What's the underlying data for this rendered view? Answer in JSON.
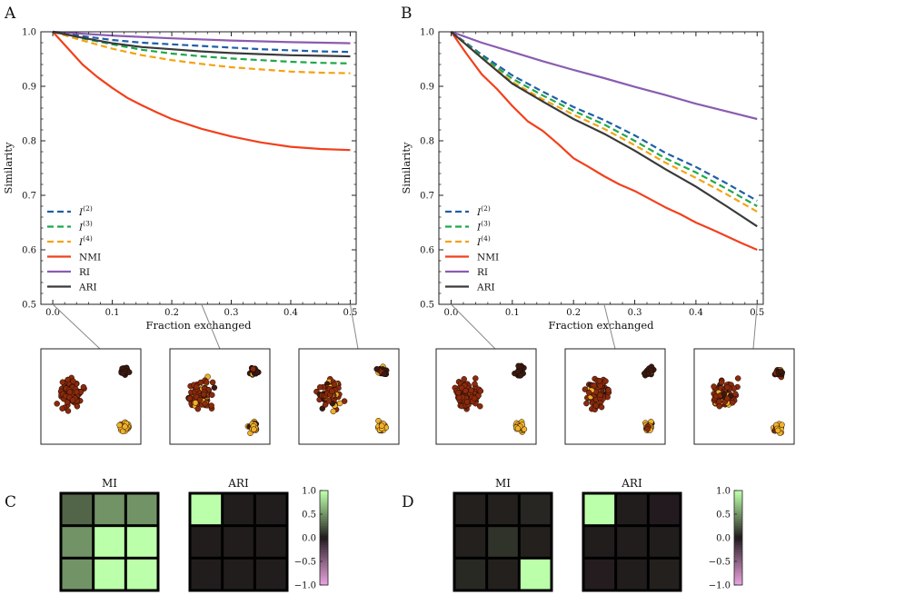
{
  "chart_data": [
    {
      "panel": "A",
      "type": "line",
      "xlabel": "Fraction exchanged",
      "ylabel": "Similarity",
      "xlim": [
        -0.02,
        0.51
      ],
      "ylim": [
        0.5,
        1.0
      ],
      "xticks": [
        "0.0",
        "0.1",
        "0.2",
        "0.3",
        "0.4",
        "0.5"
      ],
      "yticks": [
        "0.5",
        "0.6",
        "0.7",
        "0.8",
        "0.9",
        "1.0"
      ],
      "legend_position": "lower-left",
      "series": [
        {
          "name": "I(2)",
          "style": "dashed",
          "color": "#1f5fa8",
          "x": [
            0,
            0.05,
            0.1,
            0.15,
            0.2,
            0.25,
            0.3,
            0.35,
            0.4,
            0.45,
            0.5
          ],
          "y": [
            1.0,
            0.992,
            0.985,
            0.98,
            0.977,
            0.974,
            0.971,
            0.968,
            0.966,
            0.964,
            0.963
          ]
        },
        {
          "name": "I(3)",
          "style": "dashed",
          "color": "#1ea84a",
          "x": [
            0,
            0.05,
            0.1,
            0.15,
            0.2,
            0.25,
            0.3,
            0.35,
            0.4,
            0.45,
            0.5
          ],
          "y": [
            1.0,
            0.988,
            0.977,
            0.967,
            0.96,
            0.955,
            0.951,
            0.948,
            0.945,
            0.943,
            0.942
          ]
        },
        {
          "name": "I(4)",
          "style": "dashed",
          "color": "#f4a214",
          "x": [
            0,
            0.05,
            0.1,
            0.15,
            0.2,
            0.25,
            0.3,
            0.35,
            0.4,
            0.45,
            0.5
          ],
          "y": [
            1.0,
            0.984,
            0.969,
            0.957,
            0.948,
            0.941,
            0.935,
            0.931,
            0.927,
            0.925,
            0.924
          ]
        },
        {
          "name": "NMI",
          "style": "solid",
          "color": "#f2401c",
          "x": [
            0,
            0.025,
            0.05,
            0.075,
            0.1,
            0.125,
            0.15,
            0.175,
            0.2,
            0.25,
            0.3,
            0.35,
            0.4,
            0.45,
            0.5
          ],
          "y": [
            1.0,
            0.97,
            0.94,
            0.917,
            0.897,
            0.879,
            0.865,
            0.852,
            0.84,
            0.822,
            0.808,
            0.797,
            0.789,
            0.785,
            0.783
          ]
        },
        {
          "name": "RI",
          "style": "solid",
          "color": "#8a5cb0",
          "x": [
            0,
            0.1,
            0.2,
            0.3,
            0.4,
            0.5
          ],
          "y": [
            1.0,
            0.993,
            0.988,
            0.984,
            0.981,
            0.979
          ]
        },
        {
          "name": "ARI",
          "style": "solid",
          "color": "#3a3a3a",
          "x": [
            0,
            0.05,
            0.1,
            0.15,
            0.2,
            0.25,
            0.3,
            0.35,
            0.4,
            0.45,
            0.5
          ],
          "y": [
            1.0,
            0.989,
            0.979,
            0.972,
            0.968,
            0.964,
            0.961,
            0.959,
            0.957,
            0.956,
            0.955
          ]
        }
      ]
    },
    {
      "panel": "B",
      "type": "line",
      "xlabel": "Fraction exchanged",
      "ylabel": "Similarity",
      "xlim": [
        -0.02,
        0.51
      ],
      "ylim": [
        0.5,
        1.0
      ],
      "xticks": [
        "0.0",
        "0.1",
        "0.2",
        "0.3",
        "0.4",
        "0.5"
      ],
      "yticks": [
        "0.5",
        "0.6",
        "0.7",
        "0.8",
        "0.9",
        "1.0"
      ],
      "legend_position": "lower-left",
      "series": [
        {
          "name": "I(2)",
          "style": "dashed",
          "color": "#1f5fa8",
          "x": [
            0,
            0.05,
            0.1,
            0.15,
            0.2,
            0.25,
            0.3,
            0.35,
            0.4,
            0.45,
            0.5
          ],
          "y": [
            1.0,
            0.958,
            0.92,
            0.89,
            0.862,
            0.838,
            0.81,
            0.778,
            0.752,
            0.722,
            0.69
          ]
        },
        {
          "name": "I(3)",
          "style": "dashed",
          "color": "#1ea84a",
          "x": [
            0,
            0.05,
            0.1,
            0.15,
            0.2,
            0.25,
            0.3,
            0.35,
            0.4,
            0.45,
            0.5
          ],
          "y": [
            1.0,
            0.955,
            0.914,
            0.883,
            0.855,
            0.83,
            0.8,
            0.768,
            0.742,
            0.712,
            0.68
          ]
        },
        {
          "name": "I(4)",
          "style": "dashed",
          "color": "#f4a214",
          "x": [
            0,
            0.05,
            0.1,
            0.15,
            0.2,
            0.25,
            0.3,
            0.35,
            0.4,
            0.45,
            0.5
          ],
          "y": [
            1.0,
            0.952,
            0.908,
            0.876,
            0.848,
            0.822,
            0.792,
            0.76,
            0.732,
            0.702,
            0.67
          ]
        },
        {
          "name": "NMI",
          "style": "solid",
          "color": "#f2401c",
          "x": [
            0,
            0.025,
            0.05,
            0.075,
            0.1,
            0.125,
            0.15,
            0.175,
            0.2,
            0.225,
            0.25,
            0.275,
            0.3,
            0.325,
            0.35,
            0.375,
            0.4,
            0.425,
            0.45,
            0.475,
            0.5
          ],
          "y": [
            1.0,
            0.96,
            0.922,
            0.895,
            0.864,
            0.836,
            0.818,
            0.794,
            0.768,
            0.752,
            0.735,
            0.72,
            0.708,
            0.693,
            0.678,
            0.665,
            0.65,
            0.638,
            0.625,
            0.612,
            0.6
          ]
        },
        {
          "name": "RI",
          "style": "solid",
          "color": "#8a5cb0",
          "x": [
            0,
            0.05,
            0.1,
            0.15,
            0.2,
            0.25,
            0.3,
            0.35,
            0.4,
            0.45,
            0.5
          ],
          "y": [
            1.0,
            0.98,
            0.963,
            0.946,
            0.93,
            0.915,
            0.899,
            0.884,
            0.868,
            0.854,
            0.84
          ]
        },
        {
          "name": "ARI",
          "style": "solid",
          "color": "#3a3a3a",
          "x": [
            0,
            0.05,
            0.1,
            0.15,
            0.2,
            0.25,
            0.3,
            0.35,
            0.4,
            0.45,
            0.5
          ],
          "y": [
            1.0,
            0.952,
            0.905,
            0.872,
            0.84,
            0.813,
            0.782,
            0.748,
            0.716,
            0.68,
            0.643
          ]
        }
      ]
    }
  ],
  "heatmaps": {
    "C": {
      "label": "C",
      "MI": {
        "title": "MI",
        "values": [
          [
            0.3,
            0.5,
            0.5
          ],
          [
            0.5,
            1.0,
            1.0
          ],
          [
            0.5,
            1.0,
            1.0
          ]
        ]
      },
      "ARI": {
        "title": "ARI",
        "values": [
          [
            1.0,
            0.02,
            0.02
          ],
          [
            0.02,
            0.02,
            0.02
          ],
          [
            0.02,
            0.02,
            0.02
          ]
        ]
      }
    },
    "D": {
      "label": "D",
      "MI": {
        "title": "MI",
        "values": [
          [
            0.03,
            0.03,
            0.05
          ],
          [
            0.03,
            0.1,
            0.03
          ],
          [
            0.06,
            0.03,
            1.0
          ]
        ]
      },
      "ARI": {
        "title": "ARI",
        "values": [
          [
            1.0,
            0.02,
            -0.02
          ],
          [
            0.02,
            0.02,
            0.02
          ],
          [
            -0.03,
            0.02,
            0.03
          ]
        ]
      }
    },
    "colorbar_ticks": [
      "1.0",
      "0.5",
      "0.0",
      "−0.5",
      "−1.0"
    ]
  },
  "scatter_insets": {
    "A": [
      {
        "fraction": 0.0
      },
      {
        "fraction": 0.25
      },
      {
        "fraction": 0.5
      }
    ],
    "B": [
      {
        "fraction": 0.0
      },
      {
        "fraction": 0.25
      },
      {
        "fraction": 0.5
      }
    ]
  }
}
